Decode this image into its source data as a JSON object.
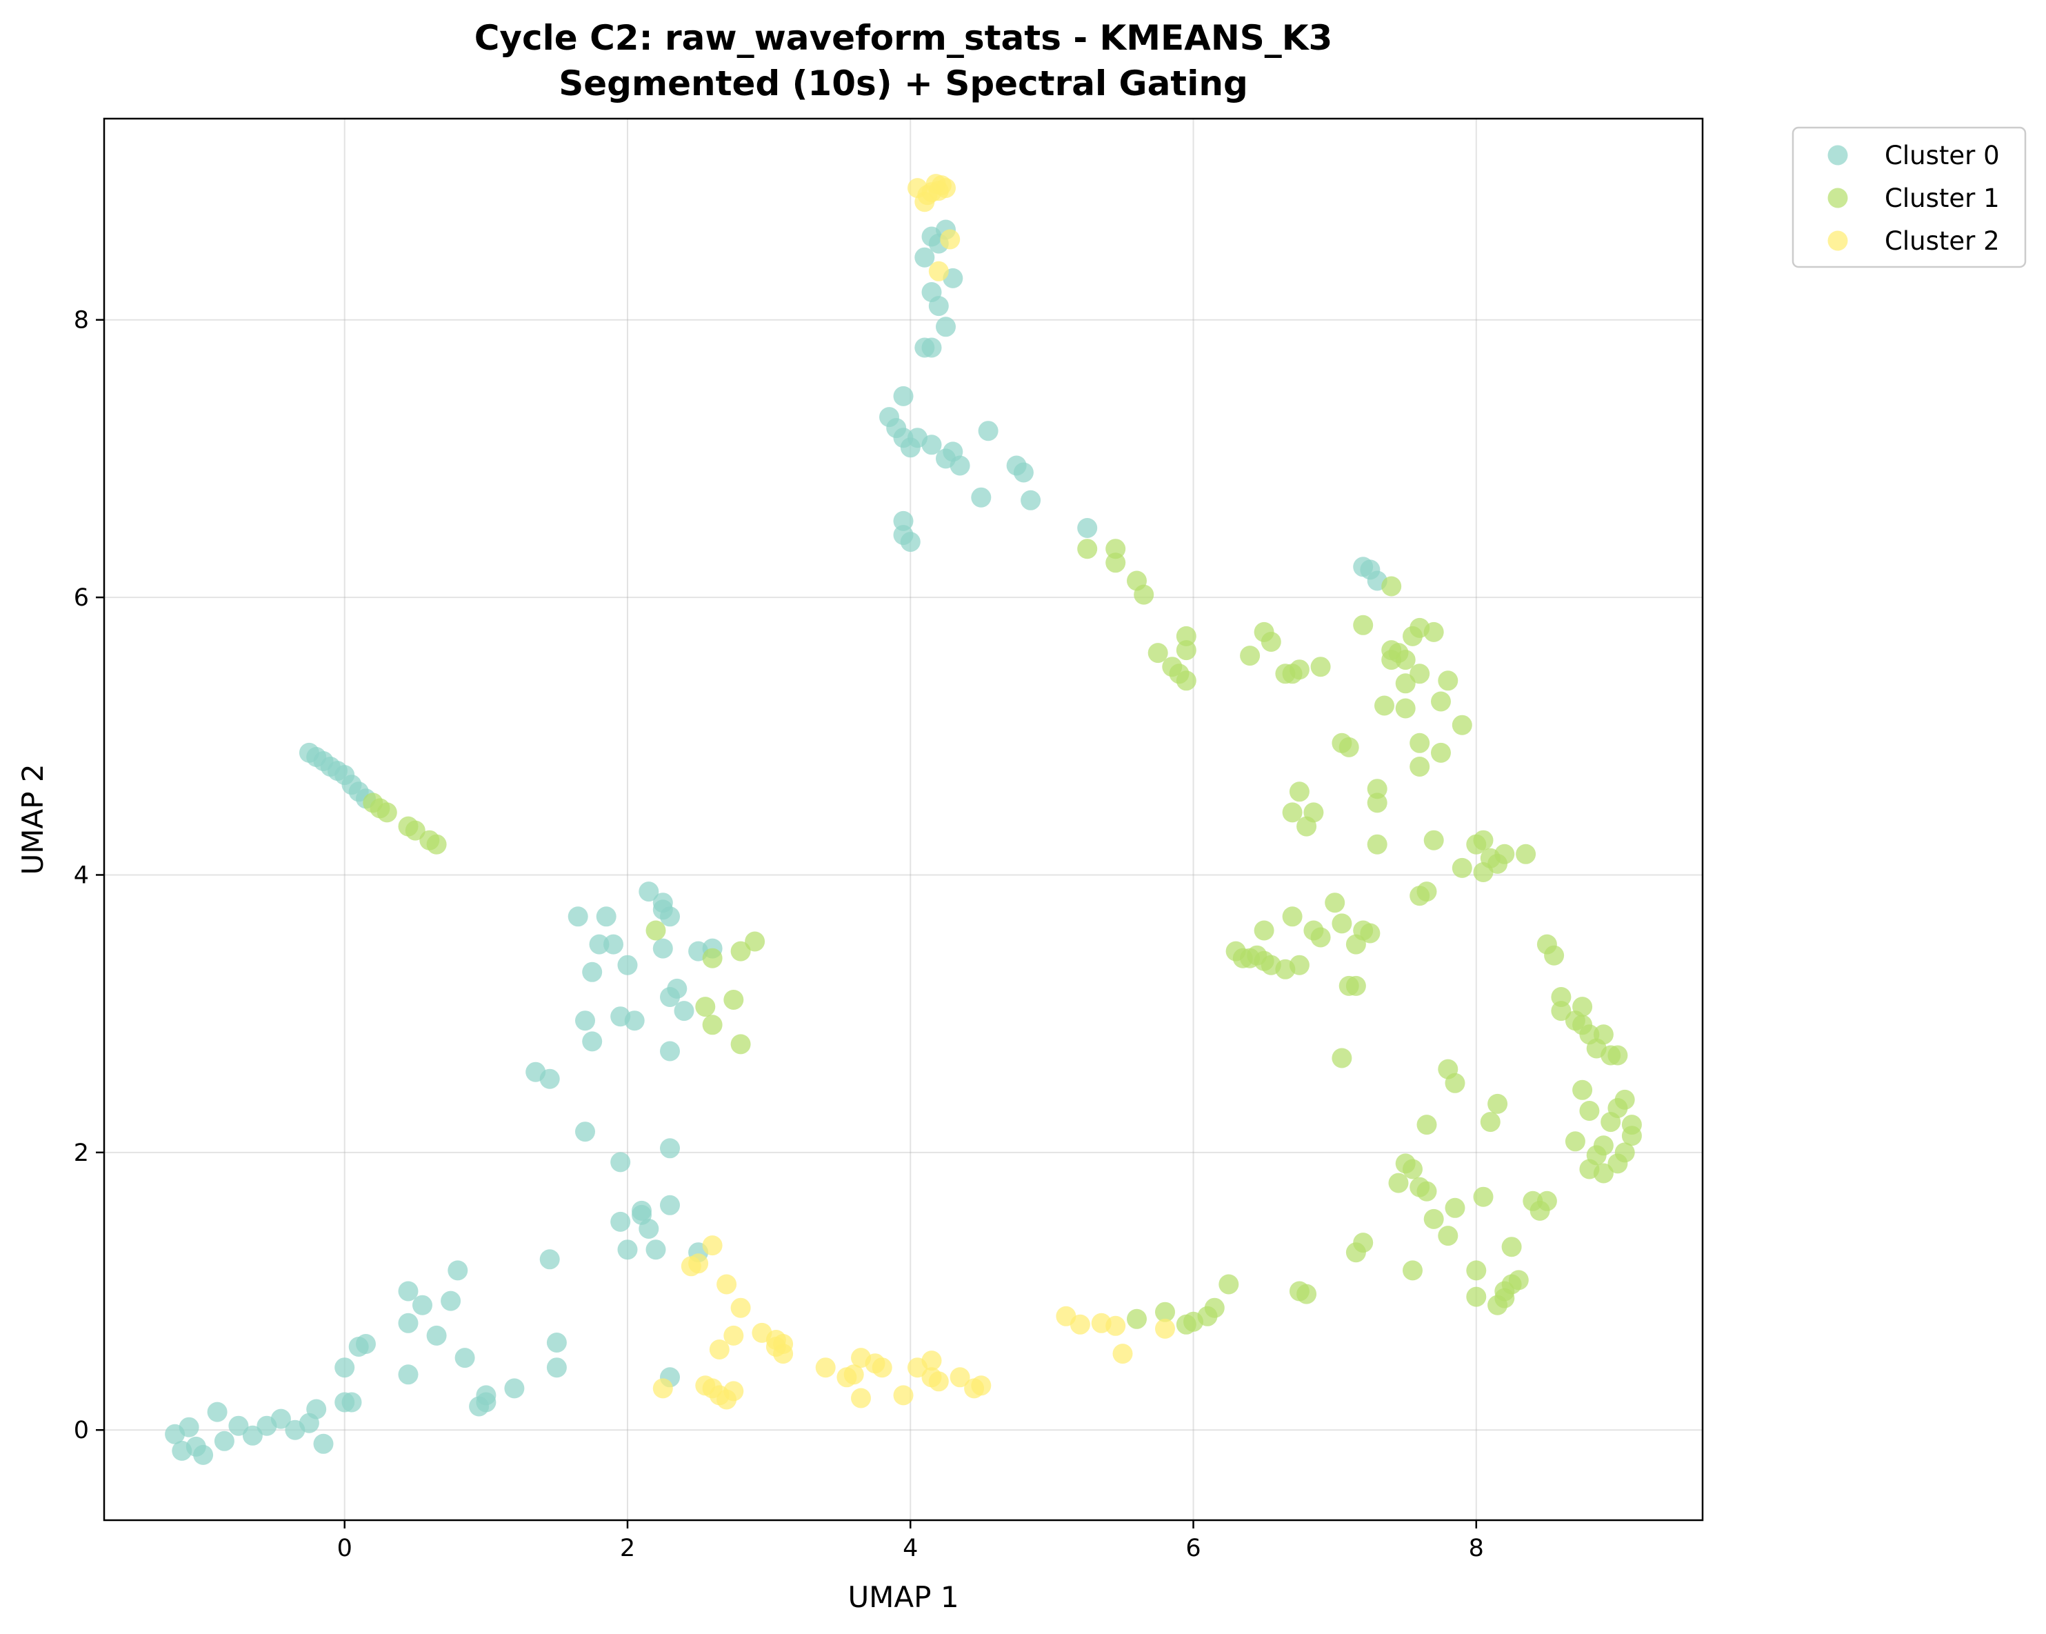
{
  "chart_data": {
    "type": "scatter",
    "title": [
      "Cycle C2: raw_waveform_stats - KMEANS_K3",
      "Segmented (10s) + Spectral Gating"
    ],
    "xlabel": "UMAP 1",
    "ylabel": "UMAP 2",
    "xlim": [
      -1.7,
      9.6
    ],
    "ylim": [
      -0.65,
      9.45
    ],
    "xticks": [
      0,
      2,
      4,
      6,
      8
    ],
    "yticks": [
      0,
      2,
      4,
      6,
      8
    ],
    "grid": true,
    "legend_position": "outside-top-right",
    "series": [
      {
        "name": "Cluster 0",
        "color": "#8dd3c7",
        "points": [
          [
            -1.1,
            0.02
          ],
          [
            -1.15,
            -0.15
          ],
          [
            -1.05,
            -0.12
          ],
          [
            -1.0,
            -0.18
          ],
          [
            -1.2,
            -0.03
          ],
          [
            -0.9,
            0.13
          ],
          [
            -0.85,
            -0.08
          ],
          [
            -0.75,
            0.03
          ],
          [
            -0.65,
            -0.04
          ],
          [
            -0.55,
            0.03
          ],
          [
            -0.45,
            0.08
          ],
          [
            -0.35,
            0.0
          ],
          [
            -0.25,
            0.05
          ],
          [
            -0.2,
            0.15
          ],
          [
            -0.15,
            -0.1
          ],
          [
            0.0,
            0.2
          ],
          [
            0.05,
            0.2
          ],
          [
            0.0,
            0.45
          ],
          [
            0.1,
            0.6
          ],
          [
            0.15,
            0.62
          ],
          [
            0.45,
            0.4
          ],
          [
            0.45,
            0.77
          ],
          [
            0.55,
            0.9
          ],
          [
            0.45,
            1.0
          ],
          [
            0.65,
            0.68
          ],
          [
            0.75,
            0.93
          ],
          [
            0.8,
            1.15
          ],
          [
            0.85,
            0.52
          ],
          [
            0.95,
            0.17
          ],
          [
            1.0,
            0.2
          ],
          [
            1.0,
            0.25
          ],
          [
            1.2,
            0.3
          ],
          [
            1.45,
            1.23
          ],
          [
            1.5,
            0.45
          ],
          [
            1.5,
            0.63
          ],
          [
            1.35,
            2.58
          ],
          [
            1.45,
            2.53
          ],
          [
            1.7,
            2.15
          ],
          [
            1.7,
            2.95
          ],
          [
            1.75,
            2.8
          ],
          [
            1.75,
            3.3
          ],
          [
            1.8,
            3.5
          ],
          [
            1.85,
            3.7
          ],
          [
            1.65,
            3.7
          ],
          [
            1.9,
            3.5
          ],
          [
            1.95,
            2.98
          ],
          [
            2.0,
            3.35
          ],
          [
            1.95,
            1.93
          ],
          [
            1.95,
            1.5
          ],
          [
            2.0,
            1.3
          ],
          [
            2.1,
            1.55
          ],
          [
            2.1,
            1.58
          ],
          [
            2.15,
            1.45
          ],
          [
            2.2,
            1.3
          ],
          [
            2.05,
            2.95
          ],
          [
            2.25,
            3.8
          ],
          [
            2.25,
            3.75
          ],
          [
            2.15,
            3.88
          ],
          [
            2.3,
            3.7
          ],
          [
            2.25,
            3.47
          ],
          [
            2.3,
            3.12
          ],
          [
            2.35,
            3.18
          ],
          [
            2.4,
            3.02
          ],
          [
            2.3,
            2.73
          ],
          [
            2.3,
            2.03
          ],
          [
            2.3,
            1.62
          ],
          [
            2.3,
            0.38
          ],
          [
            2.5,
            1.28
          ],
          [
            2.5,
            3.45
          ],
          [
            2.6,
            3.47
          ],
          [
            -0.25,
            4.88
          ],
          [
            -0.2,
            4.85
          ],
          [
            -0.15,
            4.82
          ],
          [
            -0.1,
            4.78
          ],
          [
            -0.05,
            4.75
          ],
          [
            0.0,
            4.72
          ],
          [
            0.05,
            4.65
          ],
          [
            0.1,
            4.6
          ],
          [
            0.15,
            4.55
          ],
          [
            3.85,
            7.3
          ],
          [
            3.9,
            7.22
          ],
          [
            3.95,
            7.15
          ],
          [
            4.0,
            7.08
          ],
          [
            4.05,
            7.15
          ],
          [
            3.95,
            7.45
          ],
          [
            4.15,
            7.1
          ],
          [
            4.25,
            7.0
          ],
          [
            4.3,
            7.05
          ],
          [
            4.35,
            6.95
          ],
          [
            4.5,
            6.72
          ],
          [
            4.55,
            7.2
          ],
          [
            4.75,
            6.95
          ],
          [
            4.8,
            6.9
          ],
          [
            4.85,
            6.7
          ],
          [
            3.95,
            6.55
          ],
          [
            3.95,
            6.45
          ],
          [
            4.0,
            6.4
          ],
          [
            4.1,
            7.8
          ],
          [
            4.15,
            7.8
          ],
          [
            4.15,
            8.2
          ],
          [
            4.2,
            8.1
          ],
          [
            4.2,
            8.55
          ],
          [
            4.25,
            7.95
          ],
          [
            4.1,
            8.45
          ],
          [
            4.15,
            8.6
          ],
          [
            4.25,
            8.65
          ],
          [
            4.3,
            8.3
          ],
          [
            5.25,
            6.5
          ],
          [
            7.2,
            6.22
          ],
          [
            7.25,
            6.2
          ],
          [
            7.3,
            6.12
          ]
        ]
      },
      {
        "name": "Cluster 1",
        "color": "#b3de69",
        "points": [
          [
            0.2,
            4.52
          ],
          [
            0.25,
            4.48
          ],
          [
            0.3,
            4.45
          ],
          [
            0.45,
            4.35
          ],
          [
            0.5,
            4.32
          ],
          [
            0.6,
            4.25
          ],
          [
            0.65,
            4.22
          ],
          [
            2.2,
            3.6
          ],
          [
            2.55,
            3.05
          ],
          [
            2.6,
            3.4
          ],
          [
            2.6,
            2.92
          ],
          [
            2.75,
            3.1
          ],
          [
            2.8,
            3.45
          ],
          [
            2.9,
            3.52
          ],
          [
            2.8,
            2.78
          ],
          [
            5.25,
            6.35
          ],
          [
            5.45,
            6.35
          ],
          [
            5.45,
            6.25
          ],
          [
            5.6,
            6.12
          ],
          [
            5.65,
            6.02
          ],
          [
            5.75,
            5.6
          ],
          [
            5.85,
            5.5
          ],
          [
            5.9,
            5.45
          ],
          [
            5.95,
            5.4
          ],
          [
            5.95,
            5.62
          ],
          [
            5.95,
            5.72
          ],
          [
            6.3,
            3.45
          ],
          [
            6.35,
            3.4
          ],
          [
            6.4,
            3.4
          ],
          [
            6.45,
            3.42
          ],
          [
            6.5,
            3.38
          ],
          [
            6.5,
            3.6
          ],
          [
            6.55,
            3.35
          ],
          [
            6.65,
            3.32
          ],
          [
            6.75,
            3.35
          ],
          [
            6.7,
            3.7
          ],
          [
            6.85,
            3.6
          ],
          [
            6.9,
            3.55
          ],
          [
            7.0,
            3.8
          ],
          [
            7.05,
            3.65
          ],
          [
            7.1,
            3.2
          ],
          [
            7.15,
            3.2
          ],
          [
            7.15,
            3.5
          ],
          [
            7.2,
            3.6
          ],
          [
            7.25,
            3.58
          ],
          [
            7.05,
            2.68
          ],
          [
            6.4,
            5.58
          ],
          [
            6.5,
            5.75
          ],
          [
            6.55,
            5.68
          ],
          [
            6.65,
            5.45
          ],
          [
            6.7,
            5.45
          ],
          [
            6.75,
            5.48
          ],
          [
            6.9,
            5.5
          ],
          [
            6.7,
            4.45
          ],
          [
            6.75,
            4.6
          ],
          [
            6.8,
            4.35
          ],
          [
            6.85,
            4.45
          ],
          [
            7.05,
            4.95
          ],
          [
            7.1,
            4.92
          ],
          [
            7.2,
            5.8
          ],
          [
            7.3,
            4.52
          ],
          [
            7.3,
            4.62
          ],
          [
            7.3,
            4.22
          ],
          [
            7.35,
            5.22
          ],
          [
            7.4,
            5.62
          ],
          [
            7.4,
            5.55
          ],
          [
            7.4,
            6.08
          ],
          [
            7.45,
            5.6
          ],
          [
            7.5,
            5.55
          ],
          [
            7.5,
            5.2
          ],
          [
            7.5,
            5.38
          ],
          [
            7.55,
            5.72
          ],
          [
            7.6,
            5.78
          ],
          [
            7.6,
            5.45
          ],
          [
            7.6,
            4.95
          ],
          [
            7.6,
            4.78
          ],
          [
            7.6,
            3.85
          ],
          [
            7.65,
            3.88
          ],
          [
            7.7,
            5.75
          ],
          [
            7.75,
            5.25
          ],
          [
            7.75,
            4.88
          ],
          [
            7.8,
            5.4
          ],
          [
            7.7,
            4.25
          ],
          [
            7.9,
            5.08
          ],
          [
            7.9,
            4.05
          ],
          [
            8.0,
            4.22
          ],
          [
            8.05,
            4.25
          ],
          [
            8.05,
            4.02
          ],
          [
            8.1,
            4.12
          ],
          [
            8.15,
            4.08
          ],
          [
            8.2,
            4.15
          ],
          [
            8.35,
            4.15
          ],
          [
            6.25,
            1.05
          ],
          [
            6.15,
            0.88
          ],
          [
            6.1,
            0.82
          ],
          [
            6.0,
            0.78
          ],
          [
            5.95,
            0.76
          ],
          [
            5.8,
            0.85
          ],
          [
            5.6,
            0.8
          ],
          [
            6.75,
            1.0
          ],
          [
            6.8,
            0.98
          ],
          [
            7.15,
            1.28
          ],
          [
            7.2,
            1.35
          ],
          [
            7.45,
            1.78
          ],
          [
            7.5,
            1.92
          ],
          [
            7.55,
            1.88
          ],
          [
            7.6,
            1.75
          ],
          [
            7.65,
            1.72
          ],
          [
            7.7,
            1.52
          ],
          [
            7.8,
            1.4
          ],
          [
            7.85,
            1.6
          ],
          [
            7.55,
            1.15
          ],
          [
            7.65,
            2.2
          ],
          [
            7.8,
            2.6
          ],
          [
            7.85,
            2.5
          ],
          [
            8.0,
            1.15
          ],
          [
            8.0,
            0.96
          ],
          [
            8.05,
            1.68
          ],
          [
            8.1,
            2.22
          ],
          [
            8.15,
            2.35
          ],
          [
            8.15,
            0.9
          ],
          [
            8.2,
            0.95
          ],
          [
            8.2,
            1.0
          ],
          [
            8.25,
            1.05
          ],
          [
            8.3,
            1.08
          ],
          [
            8.25,
            1.32
          ],
          [
            8.4,
            1.65
          ],
          [
            8.45,
            1.58
          ],
          [
            8.5,
            1.65
          ],
          [
            8.5,
            3.5
          ],
          [
            8.55,
            3.42
          ],
          [
            8.6,
            3.12
          ],
          [
            8.6,
            3.02
          ],
          [
            8.7,
            2.08
          ],
          [
            8.7,
            2.95
          ],
          [
            8.75,
            3.05
          ],
          [
            8.75,
            2.92
          ],
          [
            8.8,
            2.85
          ],
          [
            8.75,
            2.45
          ],
          [
            8.8,
            2.3
          ],
          [
            8.8,
            1.88
          ],
          [
            8.85,
            1.98
          ],
          [
            8.85,
            2.75
          ],
          [
            8.9,
            2.85
          ],
          [
            8.9,
            2.05
          ],
          [
            8.9,
            1.85
          ],
          [
            8.95,
            2.22
          ],
          [
            8.95,
            2.7
          ],
          [
            9.0,
            2.7
          ],
          [
            9.0,
            2.32
          ],
          [
            9.0,
            1.92
          ],
          [
            9.05,
            2.38
          ],
          [
            9.05,
            2.0
          ],
          [
            9.1,
            2.2
          ],
          [
            9.1,
            2.12
          ]
        ]
      },
      {
        "name": "Cluster 2",
        "color": "#ffed6f",
        "points": [
          [
            4.05,
            8.95
          ],
          [
            4.1,
            8.85
          ],
          [
            4.12,
            8.9
          ],
          [
            4.15,
            8.92
          ],
          [
            4.18,
            8.98
          ],
          [
            4.2,
            8.93
          ],
          [
            4.22,
            8.97
          ],
          [
            4.25,
            8.95
          ],
          [
            4.2,
            8.35
          ],
          [
            4.28,
            8.58
          ],
          [
            2.25,
            0.3
          ],
          [
            2.45,
            1.18
          ],
          [
            2.5,
            1.2
          ],
          [
            2.55,
            0.32
          ],
          [
            2.6,
            1.33
          ],
          [
            2.6,
            0.3
          ],
          [
            2.65,
            0.25
          ],
          [
            2.65,
            0.58
          ],
          [
            2.7,
            0.22
          ],
          [
            2.7,
            1.05
          ],
          [
            2.75,
            0.68
          ],
          [
            2.75,
            0.28
          ],
          [
            2.8,
            0.88
          ],
          [
            2.95,
            0.7
          ],
          [
            3.05,
            0.65
          ],
          [
            3.05,
            0.6
          ],
          [
            3.1,
            0.55
          ],
          [
            3.1,
            0.62
          ],
          [
            3.4,
            0.45
          ],
          [
            3.55,
            0.38
          ],
          [
            3.6,
            0.4
          ],
          [
            3.65,
            0.52
          ],
          [
            3.65,
            0.23
          ],
          [
            3.75,
            0.48
          ],
          [
            3.8,
            0.45
          ],
          [
            3.95,
            0.25
          ],
          [
            4.05,
            0.45
          ],
          [
            4.15,
            0.5
          ],
          [
            4.15,
            0.38
          ],
          [
            4.2,
            0.35
          ],
          [
            4.35,
            0.38
          ],
          [
            4.45,
            0.3
          ],
          [
            4.5,
            0.32
          ],
          [
            5.1,
            0.82
          ],
          [
            5.2,
            0.76
          ],
          [
            5.35,
            0.77
          ],
          [
            5.45,
            0.75
          ],
          [
            5.5,
            0.55
          ],
          [
            5.8,
            0.73
          ]
        ]
      }
    ]
  }
}
